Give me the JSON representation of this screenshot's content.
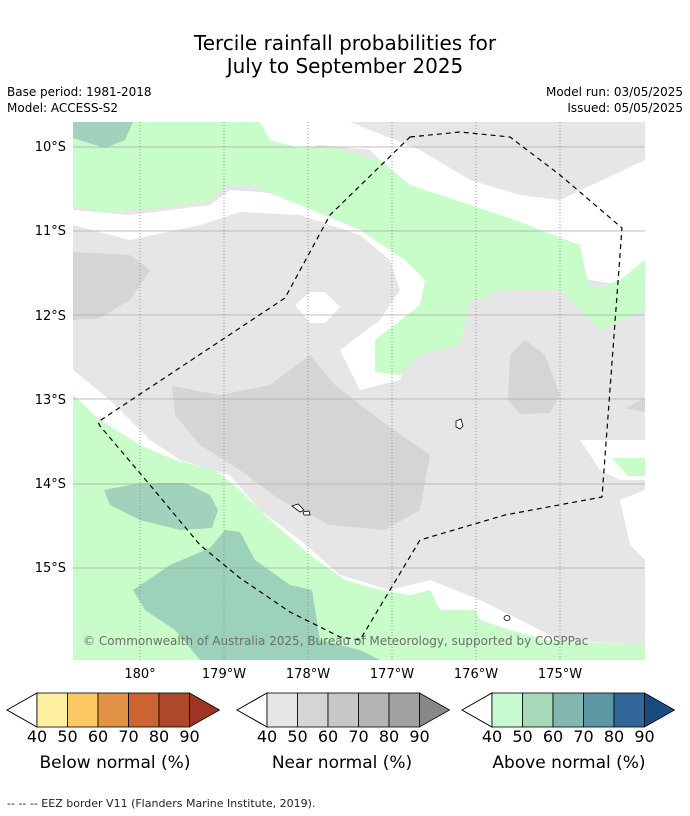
{
  "title": {
    "line1": "Tercile rainfall probabilities for",
    "line2": "July to September 2025"
  },
  "meta": {
    "base_period": "Base period: 1981-2018",
    "model": "Model: ACCESS-S2",
    "model_run": "Model run: 03/05/2025",
    "issued": "Issued: 05/05/2025"
  },
  "map": {
    "lat_labels": [
      "10°S",
      "11°S",
      "12°S",
      "13°S",
      "14°S",
      "15°S"
    ],
    "lon_labels": [
      "180°",
      "179°W",
      "178°W",
      "177°W",
      "176°W",
      "175°W"
    ],
    "copyright": "© Commonwealth of Australia 2025, Bureau of Meteorology, supported by COSPPac",
    "colors": {
      "near_40": "#e6e6e6",
      "near_50": "#d5d5d5",
      "above_40": "#c8fcc8",
      "above_50": "#a0d2bc",
      "above_60": "#9bd2b9"
    }
  },
  "colorbars": [
    {
      "label": "Below normal (%)",
      "ticks": [
        "40",
        "50",
        "60",
        "70",
        "80",
        "90"
      ],
      "colors": [
        "#fff0a0",
        "#fdc964",
        "#e29344",
        "#cb6332",
        "#ad482a",
        "#9e3522"
      ]
    },
    {
      "label": "Near normal (%)",
      "ticks": [
        "40",
        "50",
        "60",
        "70",
        "80",
        "90"
      ],
      "colors": [
        "#e6e6e6",
        "#d5d5d5",
        "#c7c7c7",
        "#b4b4b4",
        "#a2a2a2",
        "#888888"
      ]
    },
    {
      "label": "Above normal (%)",
      "ticks": [
        "40",
        "50",
        "60",
        "70",
        "80",
        "90"
      ],
      "colors": [
        "#c8fcd0",
        "#a8dab9",
        "#82b8b0",
        "#5e97a4",
        "#336699",
        "#1a4a80"
      ]
    }
  ],
  "footer": "--  --  -- EEZ border V11 (Flanders Marine Institute, 2019)."
}
